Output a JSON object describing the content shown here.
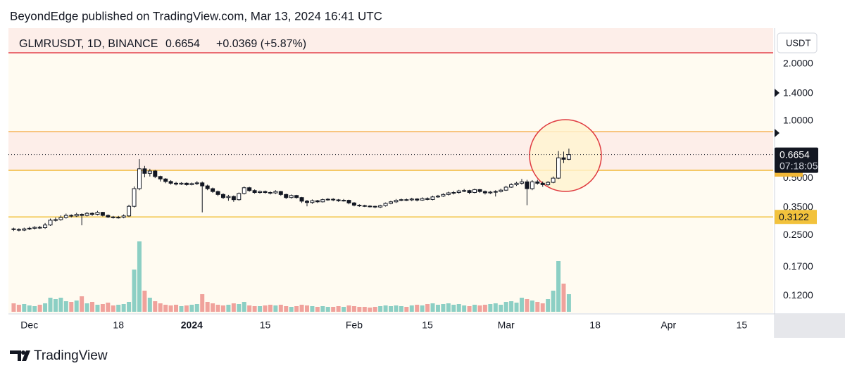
{
  "publisher_line": "BeyondEdge published on TradingView.com, Mar 13, 2024 16:41 UTC",
  "brand": "TradingView",
  "chart_data": {
    "type": "candlestick",
    "symbol": "GLMRUSDT, 1D, BINANCE",
    "last": 0.6654,
    "change_label": "+0.0369 (+5.87%)",
    "countdown": "07:18:05",
    "currency": "USDT",
    "log_scale": true,
    "grid": false,
    "xlim": [
      "2023-11-27",
      "2024-04-21"
    ],
    "ylim": [
      0.097,
      3.09
    ],
    "xticks": [
      {
        "value": "2023-12-01",
        "label": "Dec"
      },
      {
        "value": "2023-12-18",
        "label": "18"
      },
      {
        "value": "2024-01-01",
        "label": "2024"
      },
      {
        "value": "2024-01-15",
        "label": "15"
      },
      {
        "value": "2024-02-01",
        "label": "Feb"
      },
      {
        "value": "2024-02-15",
        "label": "15"
      },
      {
        "value": "2024-03-01",
        "label": "Mar"
      },
      {
        "value": "2024-03-18",
        "label": "18"
      },
      {
        "value": "2024-04-01",
        "label": "Apr"
      },
      {
        "value": "2024-04-15",
        "label": "15"
      }
    ],
    "yticks": [
      {
        "value": 2,
        "label": "2.0000"
      },
      {
        "value": 1.4,
        "label": "1.4000"
      },
      {
        "value": 1,
        "label": "1.0000"
      },
      {
        "value": 0.5,
        "label": "0.5000"
      },
      {
        "value": 0.35,
        "label": "0.3500"
      },
      {
        "value": 0.25,
        "label": "0.2500"
      },
      {
        "value": 0.17,
        "label": "0.1700"
      },
      {
        "value": 0.12,
        "label": "0.1200"
      }
    ],
    "levels": [
      {
        "value": 2.29,
        "color": "#e3404a"
      },
      {
        "value": 0.88,
        "color": "#f6b55a"
      },
      {
        "value": 0.55,
        "color": "#f2b838"
      },
      {
        "value": 0.3122,
        "color": "#f2c23c"
      }
    ],
    "up_color": "#ffffff",
    "down_color": "#131722",
    "volume_up_color": "#8ccfc4",
    "volume_down_color": "#f0a29c",
    "x": [
      "2023-11-28",
      "2023-11-29",
      "2023-11-30",
      "2023-12-01",
      "2023-12-02",
      "2023-12-03",
      "2023-12-04",
      "2023-12-05",
      "2023-12-06",
      "2023-12-07",
      "2023-12-08",
      "2023-12-09",
      "2023-12-10",
      "2023-12-11",
      "2023-12-12",
      "2023-12-13",
      "2023-12-14",
      "2023-12-15",
      "2023-12-16",
      "2023-12-17",
      "2023-12-18",
      "2023-12-19",
      "2023-12-20",
      "2023-12-21",
      "2023-12-22",
      "2023-12-23",
      "2023-12-24",
      "2023-12-25",
      "2023-12-26",
      "2023-12-27",
      "2023-12-28",
      "2023-12-29",
      "2023-12-30",
      "2023-12-31",
      "2024-01-01",
      "2024-01-02",
      "2024-01-03",
      "2024-01-04",
      "2024-01-05",
      "2024-01-06",
      "2024-01-07",
      "2024-01-08",
      "2024-01-09",
      "2024-01-10",
      "2024-01-11",
      "2024-01-12",
      "2024-01-13",
      "2024-01-14",
      "2024-01-15",
      "2024-01-16",
      "2024-01-17",
      "2024-01-18",
      "2024-01-19",
      "2024-01-20",
      "2024-01-21",
      "2024-01-22",
      "2024-01-23",
      "2024-01-24",
      "2024-01-25",
      "2024-01-26",
      "2024-01-27",
      "2024-01-28",
      "2024-01-29",
      "2024-01-30",
      "2024-01-31",
      "2024-02-01",
      "2024-02-02",
      "2024-02-03",
      "2024-02-04",
      "2024-02-05",
      "2024-02-06",
      "2024-02-07",
      "2024-02-08",
      "2024-02-09",
      "2024-02-10",
      "2024-02-11",
      "2024-02-12",
      "2024-02-13",
      "2024-02-14",
      "2024-02-15",
      "2024-02-16",
      "2024-02-17",
      "2024-02-18",
      "2024-02-19",
      "2024-02-20",
      "2024-02-21",
      "2024-02-22",
      "2024-02-23",
      "2024-02-24",
      "2024-02-25",
      "2024-02-26",
      "2024-02-27",
      "2024-02-28",
      "2024-02-29",
      "2024-03-01",
      "2024-03-02",
      "2024-03-03",
      "2024-03-04",
      "2024-03-05",
      "2024-03-06",
      "2024-03-07",
      "2024-03-08",
      "2024-03-09",
      "2024-03-10",
      "2024-03-11",
      "2024-03-12",
      "2024-03-13"
    ],
    "open": [
      0.27,
      0.268,
      0.266,
      0.27,
      0.272,
      0.275,
      0.274,
      0.283,
      0.3,
      0.302,
      0.31,
      0.318,
      0.316,
      0.322,
      0.318,
      0.326,
      0.322,
      0.33,
      0.318,
      0.312,
      0.31,
      0.311,
      0.316,
      0.355,
      0.44,
      0.56,
      0.53,
      0.545,
      0.51,
      0.495,
      0.48,
      0.47,
      0.465,
      0.47,
      0.462,
      0.468,
      0.472,
      0.455,
      0.44,
      0.425,
      0.41,
      0.395,
      0.4,
      0.385,
      0.415,
      0.445,
      0.43,
      0.42,
      0.425,
      0.42,
      0.418,
      0.425,
      0.41,
      0.395,
      0.405,
      0.395,
      0.378,
      0.372,
      0.38,
      0.375,
      0.385,
      0.387,
      0.384,
      0.38,
      0.382,
      0.37,
      0.36,
      0.358,
      0.356,
      0.355,
      0.352,
      0.358,
      0.368,
      0.375,
      0.382,
      0.385,
      0.384,
      0.388,
      0.383,
      0.39,
      0.386,
      0.398,
      0.402,
      0.41,
      0.418,
      0.42,
      0.428,
      0.43,
      0.42,
      0.435,
      0.425,
      0.418,
      0.422,
      0.425,
      0.432,
      0.448,
      0.462,
      0.47,
      0.478,
      0.44,
      0.478,
      0.47,
      0.462,
      0.475,
      0.5,
      0.64,
      0.6285
    ],
    "high": [
      0.274,
      0.272,
      0.274,
      0.277,
      0.279,
      0.28,
      0.29,
      0.306,
      0.31,
      0.318,
      0.325,
      0.322,
      0.328,
      0.326,
      0.332,
      0.33,
      0.336,
      0.332,
      0.322,
      0.316,
      0.316,
      0.322,
      0.362,
      0.452,
      0.63,
      0.58,
      0.56,
      0.552,
      0.515,
      0.5,
      0.488,
      0.478,
      0.476,
      0.475,
      0.474,
      0.482,
      0.48,
      0.462,
      0.446,
      0.43,
      0.416,
      0.408,
      0.405,
      0.42,
      0.452,
      0.45,
      0.436,
      0.43,
      0.43,
      0.426,
      0.432,
      0.428,
      0.414,
      0.41,
      0.408,
      0.398,
      0.384,
      0.386,
      0.384,
      0.39,
      0.392,
      0.392,
      0.388,
      0.388,
      0.385,
      0.374,
      0.364,
      0.362,
      0.36,
      0.358,
      0.362,
      0.372,
      0.38,
      0.388,
      0.39,
      0.39,
      0.394,
      0.392,
      0.396,
      0.396,
      0.404,
      0.408,
      0.416,
      0.424,
      0.428,
      0.434,
      0.438,
      0.434,
      0.44,
      0.438,
      0.43,
      0.428,
      0.432,
      0.44,
      0.456,
      0.47,
      0.478,
      0.495,
      0.49,
      0.488,
      0.49,
      0.48,
      0.482,
      0.51,
      0.695,
      0.69,
      0.715
    ],
    "low": [
      0.263,
      0.262,
      0.263,
      0.266,
      0.268,
      0.27,
      0.27,
      0.28,
      0.295,
      0.298,
      0.306,
      0.31,
      0.312,
      0.282,
      0.314,
      0.316,
      0.318,
      0.314,
      0.308,
      0.306,
      0.306,
      0.307,
      0.312,
      0.35,
      0.432,
      0.505,
      0.51,
      0.5,
      0.48,
      0.47,
      0.462,
      0.458,
      0.46,
      0.456,
      0.458,
      0.46,
      0.33,
      0.432,
      0.418,
      0.402,
      0.388,
      0.38,
      0.375,
      0.38,
      0.41,
      0.424,
      0.414,
      0.414,
      0.414,
      0.41,
      0.412,
      0.404,
      0.388,
      0.39,
      0.39,
      0.37,
      0.355,
      0.366,
      0.37,
      0.372,
      0.38,
      0.378,
      0.375,
      0.376,
      0.364,
      0.355,
      0.353,
      0.352,
      0.35,
      0.347,
      0.348,
      0.354,
      0.364,
      0.37,
      0.378,
      0.379,
      0.378,
      0.377,
      0.38,
      0.382,
      0.382,
      0.394,
      0.398,
      0.405,
      0.41,
      0.414,
      0.422,
      0.412,
      0.416,
      0.418,
      0.41,
      0.412,
      0.4,
      0.42,
      0.428,
      0.444,
      0.455,
      0.462,
      0.36,
      0.432,
      0.462,
      0.45,
      0.456,
      0.47,
      0.495,
      0.6,
      0.622
    ],
    "close": [
      0.268,
      0.266,
      0.27,
      0.272,
      0.275,
      0.274,
      0.283,
      0.3,
      0.302,
      0.31,
      0.318,
      0.316,
      0.322,
      0.318,
      0.326,
      0.322,
      0.33,
      0.318,
      0.312,
      0.31,
      0.311,
      0.316,
      0.355,
      0.44,
      0.56,
      0.53,
      0.545,
      0.51,
      0.495,
      0.48,
      0.47,
      0.465,
      0.47,
      0.462,
      0.468,
      0.472,
      0.455,
      0.44,
      0.425,
      0.41,
      0.395,
      0.4,
      0.385,
      0.415,
      0.445,
      0.43,
      0.42,
      0.425,
      0.42,
      0.418,
      0.425,
      0.41,
      0.395,
      0.405,
      0.395,
      0.378,
      0.372,
      0.38,
      0.375,
      0.385,
      0.387,
      0.384,
      0.38,
      0.382,
      0.37,
      0.36,
      0.358,
      0.356,
      0.355,
      0.352,
      0.358,
      0.368,
      0.375,
      0.382,
      0.385,
      0.384,
      0.388,
      0.383,
      0.39,
      0.386,
      0.398,
      0.402,
      0.41,
      0.418,
      0.42,
      0.428,
      0.43,
      0.42,
      0.435,
      0.425,
      0.418,
      0.422,
      0.425,
      0.432,
      0.448,
      0.462,
      0.47,
      0.478,
      0.44,
      0.478,
      0.47,
      0.462,
      0.475,
      0.5,
      0.64,
      0.6285,
      0.6654
    ],
    "volume": [
      12,
      10,
      11,
      9,
      8,
      10,
      12,
      20,
      18,
      20,
      15,
      14,
      16,
      22,
      12,
      14,
      10,
      11,
      13,
      9,
      10,
      11,
      14,
      60,
      100,
      30,
      20,
      15,
      12,
      10,
      9,
      10,
      8,
      9,
      10,
      11,
      25,
      14,
      12,
      10,
      9,
      10,
      12,
      11,
      14,
      9,
      8,
      8,
      9,
      10,
      9,
      10,
      8,
      7,
      8,
      10,
      9,
      8,
      7,
      8,
      7,
      7,
      8,
      7,
      9,
      8,
      7,
      7,
      6,
      7,
      8,
      9,
      8,
      9,
      8,
      7,
      9,
      10,
      9,
      11,
      12,
      10,
      11,
      12,
      10,
      11,
      9,
      8,
      10,
      9,
      10,
      11,
      12,
      10,
      14,
      15,
      13,
      20,
      18,
      16,
      14,
      12,
      18,
      30,
      72,
      40,
      25
    ]
  }
}
